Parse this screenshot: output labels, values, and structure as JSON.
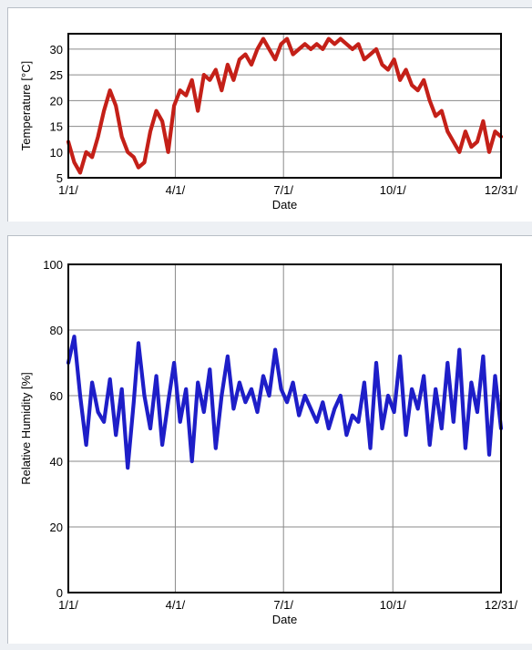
{
  "chart_data": [
    {
      "type": "line",
      "xlabel": "Date",
      "ylabel": "Temperature [°C]",
      "xlim": [
        "01-01",
        "12-31"
      ],
      "ylim": [
        5,
        33
      ],
      "yticks": [
        5,
        10,
        15,
        20,
        25,
        30
      ],
      "xticks": [
        {
          "date": "01-01",
          "label": "1/1/"
        },
        {
          "date": "04-01",
          "label": "4/1/"
        },
        {
          "date": "07-01",
          "label": "7/1/"
        },
        {
          "date": "10-01",
          "label": "10/1/"
        },
        {
          "date": "12-31",
          "label": "12/31/"
        }
      ],
      "grid": true,
      "series": [
        {
          "color": "#c42018",
          "points": [
            [
              "01-01",
              12
            ],
            [
              "01-06",
              8
            ],
            [
              "01-11",
              6
            ],
            [
              "01-16",
              10
            ],
            [
              "01-21",
              9
            ],
            [
              "01-26",
              13
            ],
            [
              "01-31",
              18
            ],
            [
              "02-05",
              22
            ],
            [
              "02-10",
              19
            ],
            [
              "02-15",
              13
            ],
            [
              "02-20",
              10
            ],
            [
              "02-25",
              9
            ],
            [
              "03-01",
              7
            ],
            [
              "03-06",
              8
            ],
            [
              "03-11",
              14
            ],
            [
              "03-16",
              18
            ],
            [
              "03-21",
              16
            ],
            [
              "03-26",
              10
            ],
            [
              "03-31",
              19
            ],
            [
              "04-05",
              22
            ],
            [
              "04-10",
              21
            ],
            [
              "04-15",
              24
            ],
            [
              "04-20",
              18
            ],
            [
              "04-25",
              25
            ],
            [
              "04-30",
              24
            ],
            [
              "05-05",
              26
            ],
            [
              "05-10",
              22
            ],
            [
              "05-15",
              27
            ],
            [
              "05-20",
              24
            ],
            [
              "05-25",
              28
            ],
            [
              "05-30",
              29
            ],
            [
              "06-04",
              27
            ],
            [
              "06-09",
              30
            ],
            [
              "06-14",
              32
            ],
            [
              "06-19",
              30
            ],
            [
              "06-24",
              28
            ],
            [
              "06-29",
              31
            ],
            [
              "07-04",
              32
            ],
            [
              "07-09",
              29
            ],
            [
              "07-14",
              30
            ],
            [
              "07-19",
              31
            ],
            [
              "07-24",
              30
            ],
            [
              "07-29",
              31
            ],
            [
              "08-03",
              30
            ],
            [
              "08-08",
              32
            ],
            [
              "08-13",
              31
            ],
            [
              "08-18",
              32
            ],
            [
              "08-23",
              31
            ],
            [
              "08-28",
              30
            ],
            [
              "09-02",
              31
            ],
            [
              "09-07",
              28
            ],
            [
              "09-12",
              29
            ],
            [
              "09-17",
              30
            ],
            [
              "09-22",
              27
            ],
            [
              "09-27",
              26
            ],
            [
              "10-02",
              28
            ],
            [
              "10-07",
              24
            ],
            [
              "10-12",
              26
            ],
            [
              "10-17",
              23
            ],
            [
              "10-22",
              22
            ],
            [
              "10-27",
              24
            ],
            [
              "11-01",
              20
            ],
            [
              "11-06",
              17
            ],
            [
              "11-11",
              18
            ],
            [
              "11-16",
              14
            ],
            [
              "11-21",
              12
            ],
            [
              "11-26",
              10
            ],
            [
              "12-01",
              14
            ],
            [
              "12-06",
              11
            ],
            [
              "12-11",
              12
            ],
            [
              "12-16",
              16
            ],
            [
              "12-21",
              10
            ],
            [
              "12-26",
              14
            ],
            [
              "12-31",
              13
            ]
          ]
        }
      ]
    },
    {
      "type": "line",
      "xlabel": "Date",
      "ylabel": "Relative Humidity [%]",
      "xlim": [
        "01-01",
        "12-31"
      ],
      "ylim": [
        0,
        100
      ],
      "yticks": [
        0,
        20,
        40,
        60,
        80,
        100
      ],
      "xticks": [
        {
          "date": "01-01",
          "label": "1/1/"
        },
        {
          "date": "04-01",
          "label": "4/1/"
        },
        {
          "date": "07-01",
          "label": "7/1/"
        },
        {
          "date": "10-01",
          "label": "10/1/"
        },
        {
          "date": "12-31",
          "label": "12/31/"
        }
      ],
      "grid": true,
      "series": [
        {
          "color": "#1e1ec8",
          "points": [
            [
              "01-01",
              70
            ],
            [
              "01-06",
              78
            ],
            [
              "01-11",
              60
            ],
            [
              "01-16",
              45
            ],
            [
              "01-21",
              64
            ],
            [
              "01-26",
              55
            ],
            [
              "01-31",
              52
            ],
            [
              "02-05",
              65
            ],
            [
              "02-10",
              48
            ],
            [
              "02-15",
              62
            ],
            [
              "02-20",
              38
            ],
            [
              "02-25",
              58
            ],
            [
              "03-01",
              76
            ],
            [
              "03-06",
              60
            ],
            [
              "03-11",
              50
            ],
            [
              "03-16",
              66
            ],
            [
              "03-21",
              45
            ],
            [
              "03-26",
              58
            ],
            [
              "03-31",
              70
            ],
            [
              "04-05",
              52
            ],
            [
              "04-10",
              62
            ],
            [
              "04-15",
              40
            ],
            [
              "04-20",
              64
            ],
            [
              "04-25",
              55
            ],
            [
              "04-30",
              68
            ],
            [
              "05-05",
              44
            ],
            [
              "05-10",
              60
            ],
            [
              "05-15",
              72
            ],
            [
              "05-20",
              56
            ],
            [
              "05-25",
              64
            ],
            [
              "05-30",
              58
            ],
            [
              "06-04",
              62
            ],
            [
              "06-09",
              55
            ],
            [
              "06-14",
              66
            ],
            [
              "06-19",
              60
            ],
            [
              "06-24",
              74
            ],
            [
              "06-29",
              62
            ],
            [
              "07-04",
              58
            ],
            [
              "07-09",
              64
            ],
            [
              "07-14",
              54
            ],
            [
              "07-19",
              60
            ],
            [
              "07-24",
              56
            ],
            [
              "07-29",
              52
            ],
            [
              "08-03",
              58
            ],
            [
              "08-08",
              50
            ],
            [
              "08-13",
              56
            ],
            [
              "08-18",
              60
            ],
            [
              "08-23",
              48
            ],
            [
              "08-28",
              54
            ],
            [
              "09-02",
              52
            ],
            [
              "09-07",
              64
            ],
            [
              "09-12",
              44
            ],
            [
              "09-17",
              70
            ],
            [
              "09-22",
              50
            ],
            [
              "09-27",
              60
            ],
            [
              "10-02",
              55
            ],
            [
              "10-07",
              72
            ],
            [
              "10-12",
              48
            ],
            [
              "10-17",
              62
            ],
            [
              "10-22",
              56
            ],
            [
              "10-27",
              66
            ],
            [
              "11-01",
              45
            ],
            [
              "11-06",
              62
            ],
            [
              "11-11",
              50
            ],
            [
              "11-16",
              70
            ],
            [
              "11-21",
              52
            ],
            [
              "11-26",
              74
            ],
            [
              "12-01",
              44
            ],
            [
              "12-06",
              64
            ],
            [
              "12-11",
              55
            ],
            [
              "12-16",
              72
            ],
            [
              "12-21",
              42
            ],
            [
              "12-26",
              66
            ],
            [
              "12-31",
              50
            ]
          ]
        }
      ]
    }
  ]
}
